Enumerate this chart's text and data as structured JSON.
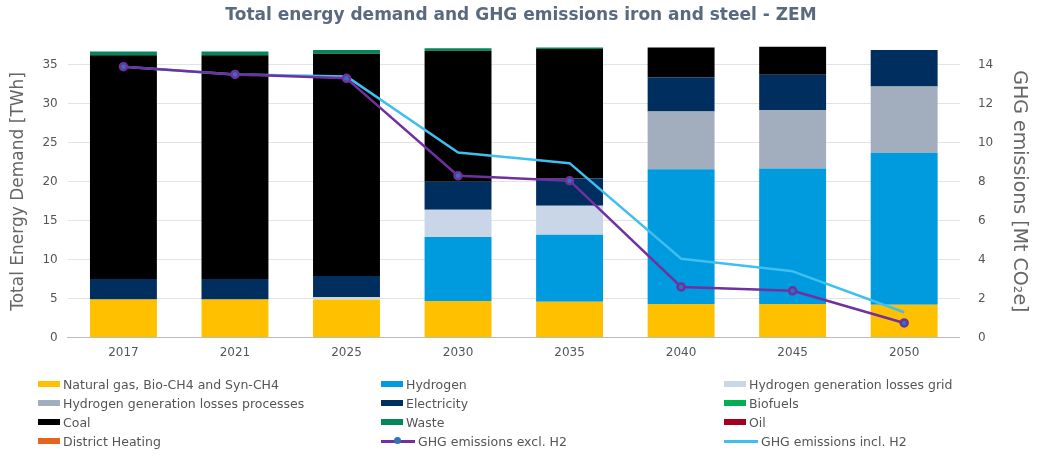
{
  "chart_data": {
    "type": "bar",
    "stacked": true,
    "title": "Total energy demand and GHG emissions iron and steel - ZEM",
    "ylabel": "Total Energy Demand [TWh]",
    "y2label": "GHG emissions [Mt CO₂e]",
    "categories": [
      "2017",
      "2021",
      "2025",
      "2030",
      "2035",
      "2040",
      "2045",
      "2050"
    ],
    "ylim": [
      0,
      37.5
    ],
    "yticks": [
      0,
      5,
      10,
      15,
      20,
      25,
      30,
      35
    ],
    "y2lim": [
      0,
      15
    ],
    "y2ticks": [
      0,
      2,
      4,
      6,
      8,
      10,
      12,
      14
    ],
    "grid": "y",
    "legend": "bottom",
    "series": [
      {
        "name": "Natural gas, Bio-CH4 and Syn-CH4",
        "color": "#ffc000",
        "values": [
          4.9,
          4.9,
          4.9,
          4.7,
          4.6,
          4.3,
          4.3,
          4.2
        ]
      },
      {
        "name": "Hydrogen",
        "color": "#009ade",
        "values": [
          0,
          0,
          0,
          8.2,
          8.6,
          17.3,
          17.4,
          19.5
        ]
      },
      {
        "name": "Hydrogen generation losses grid",
        "color": "#c8d6e8",
        "values": [
          0,
          0,
          0.3,
          3.5,
          3.7,
          0,
          0,
          0
        ]
      },
      {
        "name": "Hydrogen generation losses processes",
        "color": "#a2adbd",
        "values": [
          0,
          0,
          0,
          0,
          0,
          7.4,
          7.5,
          8.5
        ]
      },
      {
        "name": "Electricity",
        "color": "#002f5f",
        "values": [
          2.6,
          2.6,
          2.7,
          3.6,
          3.5,
          4.4,
          4.5,
          4.7
        ]
      },
      {
        "name": "Biofuels",
        "color": "#00b050",
        "values": [
          0,
          0,
          0,
          0,
          0,
          0,
          0,
          0
        ]
      },
      {
        "name": "Coal",
        "color": "#000000",
        "values": [
          28.7,
          28.7,
          28.5,
          16.8,
          16.6,
          3.8,
          3.6,
          0
        ]
      },
      {
        "name": "Waste",
        "color": "#00875a",
        "values": [
          0.5,
          0.5,
          0.5,
          0.3,
          0.2,
          0,
          0,
          0
        ]
      },
      {
        "name": "Oil",
        "color": "#a50021",
        "values": [
          0,
          0,
          0,
          0,
          0,
          0,
          0,
          0
        ]
      },
      {
        "name": "District Heating",
        "color": "#e8641e",
        "values": [
          null,
          null,
          0,
          0,
          0,
          0,
          0,
          0
        ]
      },
      {
        "name": "GHG emissions excl. H2",
        "type": "line",
        "axis": "y2",
        "marker": "circle",
        "color": "#7030a0",
        "values": [
          13.9,
          13.5,
          13.3,
          8.3,
          8.05,
          2.6,
          2.4,
          0.75
        ]
      },
      {
        "name": "GHG emissions incl. H2",
        "type": "line",
        "axis": "y2",
        "marker": "none",
        "color": "#3fbfef",
        "values": [
          13.9,
          13.5,
          13.4,
          9.5,
          8.95,
          4.05,
          3.4,
          1.3
        ]
      }
    ]
  }
}
